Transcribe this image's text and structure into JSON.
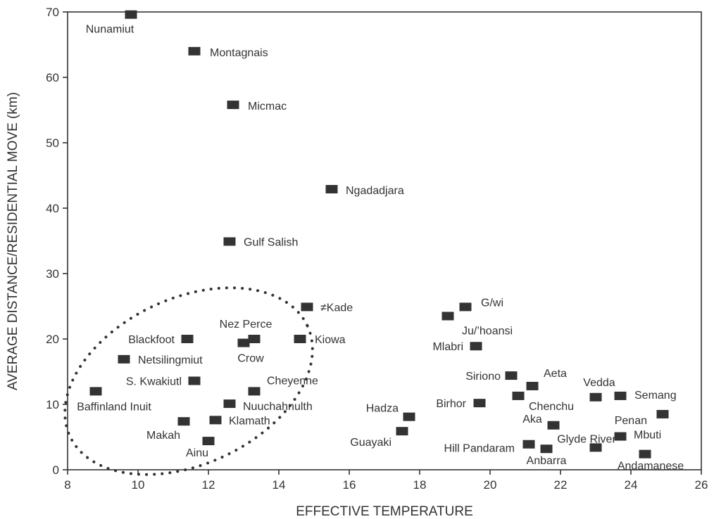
{
  "chart_data": {
    "type": "scatter",
    "title": "",
    "xlabel": "EFFECTIVE TEMPERATURE",
    "ylabel": "AVERAGE DISTANCE/RESIDENTIAL MOVE (km)",
    "xlim": [
      8,
      26
    ],
    "ylim": [
      0,
      70
    ],
    "xticks": [
      8,
      10,
      12,
      14,
      16,
      18,
      20,
      22,
      24,
      26
    ],
    "yticks": [
      0,
      10,
      20,
      30,
      40,
      50,
      60,
      70
    ],
    "grid": false,
    "marker_color": "#333333",
    "points": [
      {
        "label": "Nunamiut",
        "x": 9.8,
        "y": 69.6
      },
      {
        "label": "Montagnais",
        "x": 11.6,
        "y": 64.0
      },
      {
        "label": "Micmac",
        "x": 12.7,
        "y": 55.8
      },
      {
        "label": "Ngadadjara",
        "x": 15.5,
        "y": 42.9
      },
      {
        "label": "Gulf Salish",
        "x": 12.6,
        "y": 34.9
      },
      {
        "label": "≠Kade",
        "x": 14.8,
        "y": 24.9
      },
      {
        "label": "G/wi",
        "x": 19.3,
        "y": 24.9
      },
      {
        "label": "Ju/’hoansi",
        "x": 18.8,
        "y": 23.5
      },
      {
        "label": "Blackfoot",
        "x": 11.4,
        "y": 20.0
      },
      {
        "label": "Nez Perce",
        "x": 13.3,
        "y": 20.0
      },
      {
        "label": "Crow",
        "x": 13.0,
        "y": 19.4
      },
      {
        "label": "Kiowa",
        "x": 14.6,
        "y": 20.0
      },
      {
        "label": "Mlabri",
        "x": 19.6,
        "y": 18.9
      },
      {
        "label": "Netsilingmiut",
        "x": 9.6,
        "y": 16.9
      },
      {
        "label": "S. Kwakiutl",
        "x": 11.6,
        "y": 13.6
      },
      {
        "label": "Siriono",
        "x": 20.6,
        "y": 14.4
      },
      {
        "label": "Aeta",
        "x": 21.2,
        "y": 12.8
      },
      {
        "label": "Baffinland Inuit",
        "x": 8.8,
        "y": 12.0
      },
      {
        "label": "Cheyenne",
        "x": 13.3,
        "y": 12.0
      },
      {
        "label": "Chenchu",
        "x": 20.8,
        "y": 11.3
      },
      {
        "label": "Vedda",
        "x": 23.0,
        "y": 11.1
      },
      {
        "label": "Semang",
        "x": 23.7,
        "y": 11.3
      },
      {
        "label": "Nuuchahnulth",
        "x": 12.6,
        "y": 10.1
      },
      {
        "label": "Birhor",
        "x": 19.7,
        "y": 10.2
      },
      {
        "label": "Penan",
        "x": 24.9,
        "y": 8.5
      },
      {
        "label": "Hadza",
        "x": 17.7,
        "y": 8.1
      },
      {
        "label": "Klamath",
        "x": 12.2,
        "y": 7.6
      },
      {
        "label": "Makah",
        "x": 11.3,
        "y": 7.4
      },
      {
        "label": "Aka",
        "x": 21.8,
        "y": 6.8
      },
      {
        "label": "Guayaki",
        "x": 17.5,
        "y": 5.9
      },
      {
        "label": "Mbuti",
        "x": 23.7,
        "y": 5.1
      },
      {
        "label": "Ainu",
        "x": 12.0,
        "y": 4.4
      },
      {
        "label": "Hill Pandaram",
        "x": 21.1,
        "y": 3.9
      },
      {
        "label": "Glyde River",
        "x": 23.0,
        "y": 3.4
      },
      {
        "label": "Anbarra",
        "x": 21.6,
        "y": 3.2
      },
      {
        "label": "Andamanese",
        "x": 24.4,
        "y": 2.4
      }
    ]
  }
}
